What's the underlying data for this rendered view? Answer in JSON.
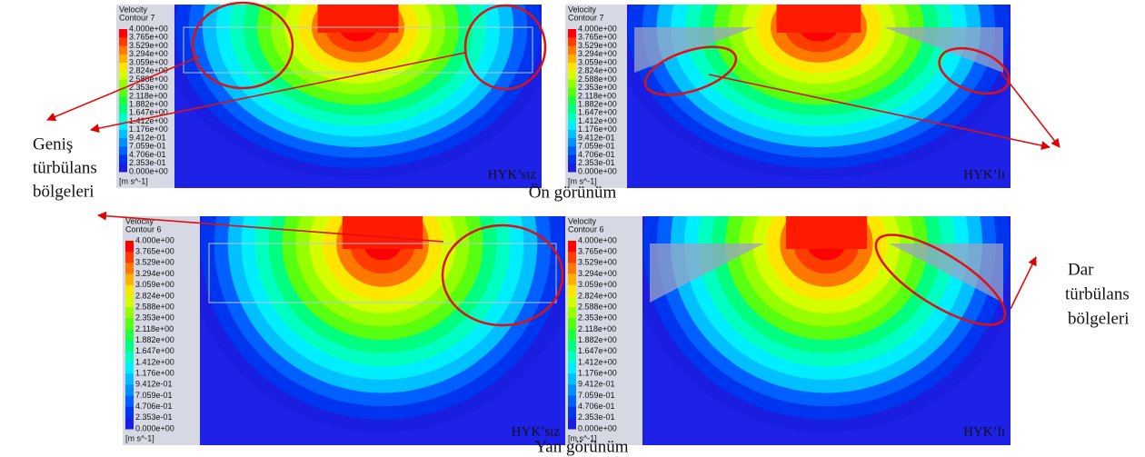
{
  "panels": [
    {
      "legend_title": "Velocity",
      "legend_subtitle": "Contour 7",
      "labels": [
        "4.000e+00",
        "3.765e+00",
        "3.529e+00",
        "3.294e+00",
        "3.059e+00",
        "2.824e+00",
        "2.588e+00",
        "2.353e+00",
        "2.118e+00",
        "1.882e+00",
        "1.647e+00",
        "1.412e+00",
        "1.176e+00",
        "9.412e-01",
        "7.059e-01",
        "4.706e-01",
        "2.353e-01",
        "0.000e+00"
      ],
      "unit": "[m s^-1]",
      "tag": "HYK’sız"
    },
    {
      "legend_title": "Velocity",
      "legend_subtitle": "Contour 7",
      "labels": [
        "4.000e+00",
        "3.765e+00",
        "3.529e+00",
        "3.294e+00",
        "3.059e+00",
        "2.824e+00",
        "2.588e+00",
        "2.353e+00",
        "2.118e+00",
        "1.882e+00",
        "1.647e+00",
        "1.412e+00",
        "1.176e+00",
        "9.412e-01",
        "7.059e-01",
        "4.706e-01",
        "2.353e-01",
        "0.000e+00"
      ],
      "unit": "[m s^-1]",
      "tag": "HYK’lı"
    },
    {
      "legend_title": "Velocity",
      "legend_subtitle": "Contour 6",
      "labels": [
        "4.000e+00",
        "3.765e+00",
        "3.529e+00",
        "3.294e+00",
        "3.059e+00",
        "2.824e+00",
        "2.588e+00",
        "2.353e+00",
        "2.118e+00",
        "1.882e+00",
        "1.647e+00",
        "1.412e+00",
        "1.176e+00",
        "9.412e-01",
        "7.059e-01",
        "4.706e-01",
        "2.353e-01",
        "0.000e+00"
      ],
      "unit": "[m s^-1]",
      "tag": "HYK’sız"
    },
    {
      "legend_title": "Velocity",
      "legend_subtitle": "Contour 6",
      "labels": [
        "4.000e+00",
        "3.765e+00",
        "3.529e+00",
        "3.294e+00",
        "3.059e+00",
        "2.824e+00",
        "2.588e+00",
        "2.353e+00",
        "2.118e+00",
        "1.882e+00",
        "1.647e+00",
        "1.412e+00",
        "1.176e+00",
        "9.412e-01",
        "7.059e-01",
        "4.706e-01",
        "2.353e-01",
        "0.000e+00"
      ],
      "unit": "[m s^-1]",
      "tag": "HYK’lı"
    }
  ],
  "captions": [
    "Ön görünüm",
    "Yan görünüm"
  ],
  "annotations": {
    "left": [
      "Geniş",
      "türbülans",
      "bölgeleri"
    ],
    "right": [
      "Dar",
      "türbülans",
      "bölgeleri"
    ]
  }
}
